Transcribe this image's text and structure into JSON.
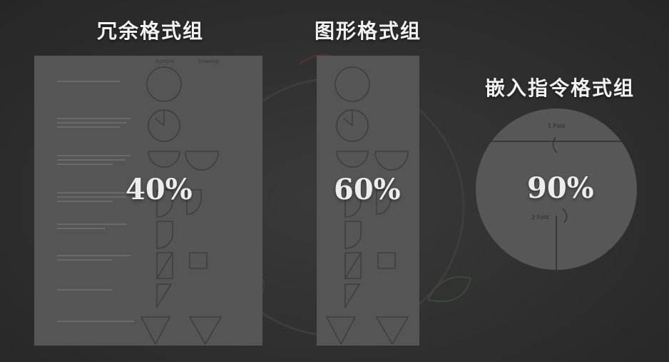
{
  "groups": [
    {
      "heading": "冗余格式组",
      "percent": "40%"
    },
    {
      "heading": "图形格式组",
      "percent": "60%"
    },
    {
      "heading": "嵌入指令格式组",
      "percent": "90%"
    }
  ],
  "figure_labels": {
    "fold_one": "1 Fold",
    "fold_two": "2 Fold"
  },
  "colors": {
    "background": "#2f2f2f",
    "panel": "#555555",
    "text": "#f2f2f2"
  }
}
